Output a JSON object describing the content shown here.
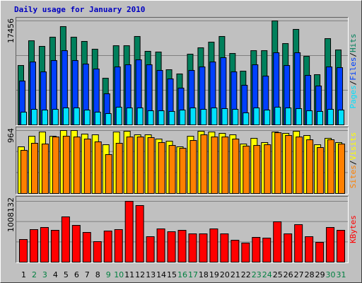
{
  "title": "Daily usage for January 2010",
  "legend_separator": "/",
  "chart_data": [
    {
      "type": "bar",
      "series": [
        {
          "name": "Hits",
          "color": "#00805c",
          "values": [
            9970,
            14120,
            13180,
            14720,
            16500,
            14720,
            14010,
            12700,
            7830,
            13290,
            13290,
            14840,
            12350,
            12230,
            9260,
            8550,
            11870,
            12940,
            13890,
            14840,
            11990,
            9020,
            12460,
            12460,
            17456,
            13650,
            16030,
            11510,
            8430,
            14480,
            12580
          ]
        },
        {
          "name": "Files",
          "color": "#0040ff",
          "values": [
            7360,
            10560,
            8900,
            10800,
            12460,
            10800,
            10210,
            9380,
            5220,
            9730,
            10090,
            10920,
            10090,
            9140,
            7720,
            6170,
            9140,
            9730,
            10560,
            11280,
            8900,
            6650,
            10090,
            8190,
            12110,
            9970,
            12110,
            8310,
            6530,
            9730,
            9610
          ]
        },
        {
          "name": "Pages",
          "color": "#00e0ff",
          "values": [
            2140,
            2610,
            2490,
            2610,
            2850,
            2850,
            2490,
            2140,
            1900,
            2970,
            2850,
            2850,
            2370,
            2370,
            2260,
            2490,
            2850,
            2610,
            2850,
            2730,
            2610,
            2020,
            2850,
            2490,
            2970,
            2850,
            2730,
            2370,
            2260,
            2610,
            2490
          ]
        }
      ],
      "ylim": [
        0,
        17456
      ],
      "yticks": [
        17456
      ],
      "grid_divisions": 3
    },
    {
      "type": "bar",
      "series": [
        {
          "name": "Visits",
          "color": "#ffff00",
          "values": [
            715,
            877,
            942,
            877,
            964,
            964,
            910,
            899,
            747,
            942,
            953,
            899,
            899,
            834,
            801,
            715,
            877,
            953,
            942,
            921,
            899,
            758,
            845,
            780,
            942,
            921,
            953,
            888,
            747,
            845,
            780
          ]
        },
        {
          "name": "Sites",
          "color": "#ff8000",
          "values": [
            661,
            769,
            758,
            866,
            877,
            866,
            834,
            791,
            596,
            769,
            866,
            866,
            856,
            780,
            736,
            693,
            812,
            899,
            866,
            866,
            834,
            726,
            736,
            747,
            931,
            888,
            866,
            823,
            704,
            823,
            758
          ]
        }
      ],
      "ylim": [
        0,
        964
      ],
      "yticks": [
        964
      ],
      "grid_divisions": 3
    },
    {
      "type": "bar",
      "categories": [
        "1",
        "2",
        "3",
        "4",
        "5",
        "6",
        "7",
        "8",
        "9",
        "10",
        "11",
        "12",
        "13",
        "14",
        "15",
        "16",
        "17",
        "18",
        "19",
        "20",
        "21",
        "22",
        "23",
        "24",
        "25",
        "26",
        "27",
        "28",
        "29",
        "30",
        "31"
      ],
      "category_colors": [
        "#000000",
        "#008040",
        "#008040",
        "#000000",
        "#000000",
        "#000000",
        "#000000",
        "#000000",
        "#008040",
        "#008040",
        "#000000",
        "#000000",
        "#000000",
        "#000000",
        "#000000",
        "#008040",
        "#008040",
        "#000000",
        "#000000",
        "#000000",
        "#000000",
        "#000000",
        "#008040",
        "#008040",
        "#000000",
        "#000000",
        "#000000",
        "#000000",
        "#000000",
        "#008040",
        "#008040"
      ],
      "series": [
        {
          "name": "KBytes",
          "color": "#ff0000",
          "values": [
            375110,
            539210,
            574380,
            527490,
            750210,
            609540,
            492320,
            339930,
            515760,
            539210,
            1008132,
            937760,
            421990,
            550930,
            504040,
            527490,
            468880,
            468880,
            550930,
            468880,
            363380,
            316490,
            410270,
            398550,
            668150,
            468880,
            621260,
            421990,
            328210,
            574380,
            527490
          ]
        }
      ],
      "ylim": [
        0,
        1008132
      ],
      "yticks": [
        1008132
      ],
      "grid_divisions": 3
    }
  ]
}
